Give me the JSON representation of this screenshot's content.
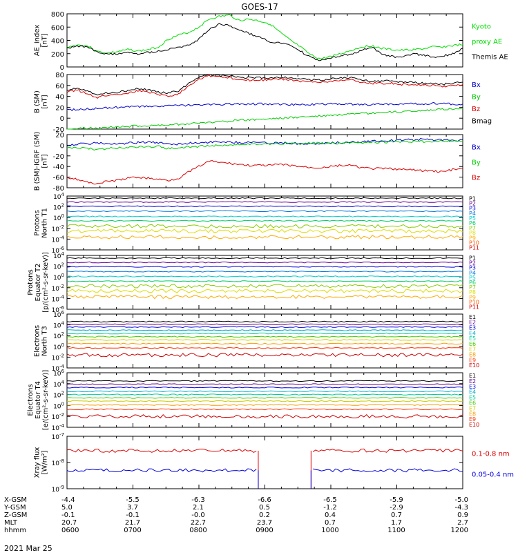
{
  "title": "GOES-17",
  "date_label": "2021 Mar 25",
  "chart_data": [
    {
      "type": "line",
      "ylabel": [
        "AE_index",
        "[nT]"
      ],
      "ylim": [
        0,
        800
      ],
      "y_ticks": [
        "800",
        "600",
        "400",
        "200",
        "0"
      ],
      "series": [
        {
          "name": "Kyoto proxy AE",
          "color": "#00dd00",
          "values": [
            300,
            330,
            320,
            230,
            210,
            230,
            260,
            240,
            260,
            300,
            420,
            480,
            520,
            600,
            720,
            760,
            780,
            700,
            720,
            690,
            650,
            520,
            400,
            300,
            180,
            120,
            160,
            200,
            250,
            300,
            320,
            280,
            260,
            250,
            260,
            270,
            300,
            300,
            320,
            340
          ]
        },
        {
          "name": "Themis AE",
          "color": "#000000",
          "values": [
            280,
            320,
            300,
            220,
            190,
            200,
            220,
            200,
            220,
            240,
            260,
            300,
            320,
            420,
            560,
            640,
            620,
            560,
            500,
            440,
            380,
            360,
            320,
            240,
            140,
            100,
            130,
            170,
            200,
            240,
            300,
            200,
            160,
            140,
            200,
            180,
            150,
            160,
            200,
            280
          ]
        }
      ],
      "legend": [
        {
          "text": "Kyoto",
          "color": "#00dd00"
        },
        {
          "text": "proxy AE",
          "color": "#00dd00"
        },
        {
          "text": "Themis AE",
          "color": "#000000"
        }
      ]
    },
    {
      "type": "line",
      "ylabel": [
        "B (SM)",
        "[nT]"
      ],
      "ylim": [
        -20,
        80
      ],
      "y_ticks": [
        "80",
        "60",
        "40",
        "20",
        "0",
        "-20"
      ],
      "series": [
        {
          "name": "Bx",
          "color": "#0000cc",
          "values": [
            15,
            16,
            17,
            18,
            19,
            20,
            21,
            21,
            22,
            22,
            23,
            23,
            24,
            24,
            25,
            25,
            26,
            26,
            26,
            26,
            26,
            25,
            25,
            25,
            25,
            26,
            26,
            26,
            26,
            25,
            25,
            26,
            26,
            26,
            26,
            26,
            27,
            27,
            26,
            26
          ]
        },
        {
          "name": "By",
          "color": "#00cc00",
          "values": [
            -20,
            -19,
            -18,
            -18,
            -17,
            -16,
            -15,
            -14,
            -14,
            -13,
            -12,
            -11,
            -10,
            -9,
            -8,
            -6,
            -5,
            -4,
            -3,
            -2,
            -1,
            0,
            1,
            2,
            3,
            4,
            5,
            6,
            7,
            8,
            9,
            10,
            11,
            12,
            13,
            14,
            15,
            16,
            17,
            18
          ]
        },
        {
          "name": "Bz",
          "color": "#dd0000",
          "values": [
            48,
            52,
            45,
            38,
            42,
            44,
            46,
            50,
            48,
            44,
            40,
            45,
            60,
            72,
            78,
            76,
            74,
            72,
            70,
            70,
            70,
            72,
            70,
            68,
            66,
            66,
            68,
            70,
            70,
            66,
            64,
            64,
            64,
            62,
            62,
            60,
            60,
            58,
            60,
            62
          ]
        },
        {
          "name": "Bmag",
          "color": "#000000",
          "values": [
            52,
            56,
            50,
            44,
            46,
            48,
            50,
            54,
            52,
            48,
            46,
            50,
            64,
            76,
            80,
            78,
            77,
            75,
            74,
            74,
            74,
            75,
            74,
            72,
            70,
            70,
            72,
            74,
            74,
            70,
            68,
            68,
            68,
            66,
            66,
            64,
            64,
            62,
            64,
            66
          ]
        }
      ],
      "legend": [
        {
          "text": "Bx",
          "color": "#0000cc"
        },
        {
          "text": "By",
          "color": "#00cc00"
        },
        {
          "text": "Bz",
          "color": "#dd0000"
        },
        {
          "text": "Bmag",
          "color": "#000000"
        }
      ]
    },
    {
      "type": "line",
      "ylabel": [
        "B (SM)-IGRF (SM)",
        "[nT]"
      ],
      "ylim": [
        -80,
        20
      ],
      "y_ticks": [
        "20",
        "0",
        "-20",
        "-40",
        "-60",
        "-80"
      ],
      "series": [
        {
          "name": "Bx",
          "color": "#0000cc",
          "values": [
            0,
            2,
            3,
            4,
            3,
            2,
            4,
            5,
            6,
            4,
            3,
            2,
            4,
            5,
            6,
            7,
            6,
            5,
            6,
            5,
            4,
            5,
            4,
            3,
            2,
            3,
            4,
            5,
            6,
            7,
            8,
            8,
            9,
            10,
            10,
            11,
            10,
            10,
            9,
            10
          ]
        },
        {
          "name": "By",
          "color": "#00cc00",
          "values": [
            -5,
            -4,
            -6,
            -8,
            -6,
            -5,
            -4,
            -3,
            -3,
            -2,
            -6,
            -5,
            -3,
            -2,
            -1,
            0,
            1,
            2,
            2,
            3,
            3,
            3,
            3,
            3,
            4,
            4,
            4,
            4,
            5,
            5,
            5,
            6,
            6,
            6,
            7,
            7,
            7,
            8,
            8,
            8
          ]
        },
        {
          "name": "Bz",
          "color": "#dd0000",
          "values": [
            -60,
            -64,
            -70,
            -72,
            -68,
            -66,
            -62,
            -60,
            -62,
            -64,
            -66,
            -62,
            -50,
            -40,
            -30,
            -32,
            -34,
            -36,
            -38,
            -38,
            -38,
            -36,
            -38,
            -40,
            -42,
            -42,
            -40,
            -38,
            -38,
            -42,
            -44,
            -44,
            -44,
            -46,
            -46,
            -48,
            -48,
            -50,
            -46,
            -44
          ]
        }
      ],
      "legend": [
        {
          "text": "Bx",
          "color": "#0000cc"
        },
        {
          "text": "By",
          "color": "#00cc00"
        },
        {
          "text": "Bz",
          "color": "#dd0000"
        }
      ]
    },
    {
      "type": "line",
      "log_scale": true,
      "ylabel": [
        "Protons",
        "North T1"
      ],
      "y_exp_range": [
        -6,
        4
      ],
      "y_ticks": [
        {
          "m": "10",
          "e": "4"
        },
        {
          "m": "10",
          "e": "2"
        },
        {
          "m": "10",
          "e": "0"
        },
        {
          "m": "10",
          "e": "-2"
        },
        {
          "m": "10",
          "e": "-4"
        },
        {
          "m": "10",
          "e": "-6"
        }
      ],
      "series": [
        {
          "name": "P1",
          "color": "#000000",
          "log_level": 3.6
        },
        {
          "name": "P2",
          "color": "#660099",
          "log_level": 2.9
        },
        {
          "name": "P3",
          "color": "#0000dd",
          "log_level": 2.1
        },
        {
          "name": "P4",
          "color": "#0077dd",
          "log_level": 1.2
        },
        {
          "name": "P5",
          "color": "#00cccc",
          "log_level": 0.2
        },
        {
          "name": "P6",
          "color": "#00cc66",
          "log_level": -0.6
        },
        {
          "name": "P7",
          "color": "#88cc00",
          "log_level": -1.6
        },
        {
          "name": "P8",
          "color": "#dddd00",
          "log_level": -2.5
        },
        {
          "name": "P9",
          "color": "#ffaa00",
          "log_level": -3.6
        },
        {
          "name": "P10",
          "color": "#ff5500",
          "log_level": -9
        },
        {
          "name": "P11",
          "color": "#dd0000",
          "log_level": -9
        }
      ]
    },
    {
      "type": "line",
      "log_scale": true,
      "ylabel": [
        "Protons",
        "Equator T2",
        "[p/(cm²-s-sr-keV)]"
      ],
      "y_exp_range": [
        -6,
        4
      ],
      "y_ticks": [
        {
          "m": "10",
          "e": "4"
        },
        {
          "m": "10",
          "e": "2"
        },
        {
          "m": "10",
          "e": "0"
        },
        {
          "m": "10",
          "e": "-2"
        },
        {
          "m": "10",
          "e": "-4"
        },
        {
          "m": "10",
          "e": "-6"
        }
      ],
      "series": [
        {
          "name": "P1",
          "color": "#000000",
          "log_level": 3.5
        },
        {
          "name": "P2",
          "color": "#660099",
          "log_level": 2.7
        },
        {
          "name": "P3",
          "color": "#0000dd",
          "log_level": 1.9
        },
        {
          "name": "P4",
          "color": "#0077dd",
          "log_level": 1.0
        },
        {
          "name": "P5",
          "color": "#00cccc",
          "log_level": 0.1
        },
        {
          "name": "P6",
          "color": "#00cc66",
          "log_level": -0.8
        },
        {
          "name": "P7",
          "color": "#88cc00",
          "log_level": -1.7
        },
        {
          "name": "P8",
          "color": "#dddd00",
          "log_level": -2.6
        },
        {
          "name": "P9",
          "color": "#ffaa00",
          "log_level": -3.7
        },
        {
          "name": "P10",
          "color": "#ff5500",
          "log_level": -9
        },
        {
          "name": "P11",
          "color": "#dd0000",
          "log_level": -9
        }
      ]
    },
    {
      "type": "line",
      "log_scale": true,
      "ylabel": [
        "Electrons",
        "North T3"
      ],
      "y_exp_range": [
        -4,
        6
      ],
      "y_ticks": [
        {
          "m": "10",
          "e": "6"
        },
        {
          "m": "10",
          "e": "4"
        },
        {
          "m": "10",
          "e": "2"
        },
        {
          "m": "10",
          "e": "0"
        },
        {
          "m": "10",
          "e": "-2"
        },
        {
          "m": "10",
          "e": "-4"
        }
      ],
      "series": [
        {
          "name": "E1",
          "color": "#000000",
          "log_level": 4.6
        },
        {
          "name": "E2",
          "color": "#660099",
          "log_level": 4.1
        },
        {
          "name": "E3",
          "color": "#0000dd",
          "log_level": 3.6
        },
        {
          "name": "E4",
          "color": "#00aacc",
          "log_level": 3.0
        },
        {
          "name": "E5",
          "color": "#00cc99",
          "log_level": 2.4
        },
        {
          "name": "E6",
          "color": "#44cc00",
          "log_level": 1.8
        },
        {
          "name": "E7",
          "color": "#cccc00",
          "log_level": 1.2
        },
        {
          "name": "E8",
          "color": "#ff9900",
          "log_level": 0.5
        },
        {
          "name": "E9",
          "color": "#ff3300",
          "log_level": -0.3
        },
        {
          "name": "E10",
          "color": "#cc0000",
          "log_level": -1.6
        }
      ]
    },
    {
      "type": "line",
      "log_scale": true,
      "ylabel": [
        "Electrons",
        "Equator T4",
        "[e/(cm²-s-sr-keV)]"
      ],
      "y_exp_range": [
        -4,
        6
      ],
      "y_ticks": [
        {
          "m": "10",
          "e": "6"
        },
        {
          "m": "10",
          "e": "4"
        },
        {
          "m": "10",
          "e": "2"
        },
        {
          "m": "10",
          "e": "0"
        },
        {
          "m": "10",
          "e": "-2"
        },
        {
          "m": "10",
          "e": "-4"
        }
      ],
      "series": [
        {
          "name": "E1",
          "color": "#000000",
          "log_level": 4.5
        },
        {
          "name": "E2",
          "color": "#660099",
          "log_level": 3.9
        },
        {
          "name": "E3",
          "color": "#0000dd",
          "log_level": 3.3
        },
        {
          "name": "E4",
          "color": "#00aacc",
          "log_level": 2.6
        },
        {
          "name": "E5",
          "color": "#00cc99",
          "log_level": 2.0
        },
        {
          "name": "E6",
          "color": "#44cc00",
          "log_level": 1.4
        },
        {
          "name": "E7",
          "color": "#cccc00",
          "log_level": 0.8
        },
        {
          "name": "E8",
          "color": "#ff9900",
          "log_level": 0.1
        },
        {
          "name": "E9",
          "color": "#ff3300",
          "log_level": -0.7
        },
        {
          "name": "E10",
          "color": "#cc0000",
          "log_level": -2.0
        }
      ]
    },
    {
      "type": "line",
      "log_scale": true,
      "ylabel": [
        "Xray flux",
        "[W/m²]"
      ],
      "y_exp_range": [
        -9,
        -7
      ],
      "y_ticks": [
        {
          "m": "10",
          "e": "-7"
        },
        {
          "m": "10",
          "e": "-8"
        },
        {
          "m": "10",
          "e": "-9"
        }
      ],
      "gap_hours": [
        8.9,
        9.7
      ],
      "series": [
        {
          "name": "0.1-0.8 nm",
          "color": "#dd0000",
          "log_level": -7.55
        },
        {
          "name": "0.05-0.4 nm",
          "color": "#0000dd",
          "log_level": -8.3
        }
      ],
      "legend": [
        {
          "text": "0.1-0.8 nm",
          "color": "#dd0000"
        },
        {
          "text": "0.05-0.4 nm",
          "color": "#0000dd"
        }
      ]
    }
  ],
  "xlim_hours": [
    6,
    12
  ],
  "ephemeris": {
    "rows": [
      {
        "label": "X-GSM",
        "values": [
          "-4.4",
          "-5.5",
          "-6.3",
          "-6.6",
          "-6.5",
          "-5.9",
          "-5.0"
        ]
      },
      {
        "label": "Y-GSM",
        "values": [
          "5.0",
          "3.7",
          "2.1",
          "0.5",
          "-1.2",
          "-2.9",
          "-4.3"
        ]
      },
      {
        "label": "Z-GSM",
        "values": [
          "-0.1",
          "-0.1",
          "-0.0",
          "0.2",
          "0.4",
          "0.7",
          "0.9"
        ]
      },
      {
        "label": "MLT",
        "values": [
          "20.7",
          "21.7",
          "22.7",
          "23.7",
          "0.7",
          "1.7",
          "2.7"
        ]
      },
      {
        "label": "hhmm",
        "values": [
          "0600",
          "0700",
          "0800",
          "0900",
          "1000",
          "1100",
          "1200"
        ]
      }
    ]
  }
}
